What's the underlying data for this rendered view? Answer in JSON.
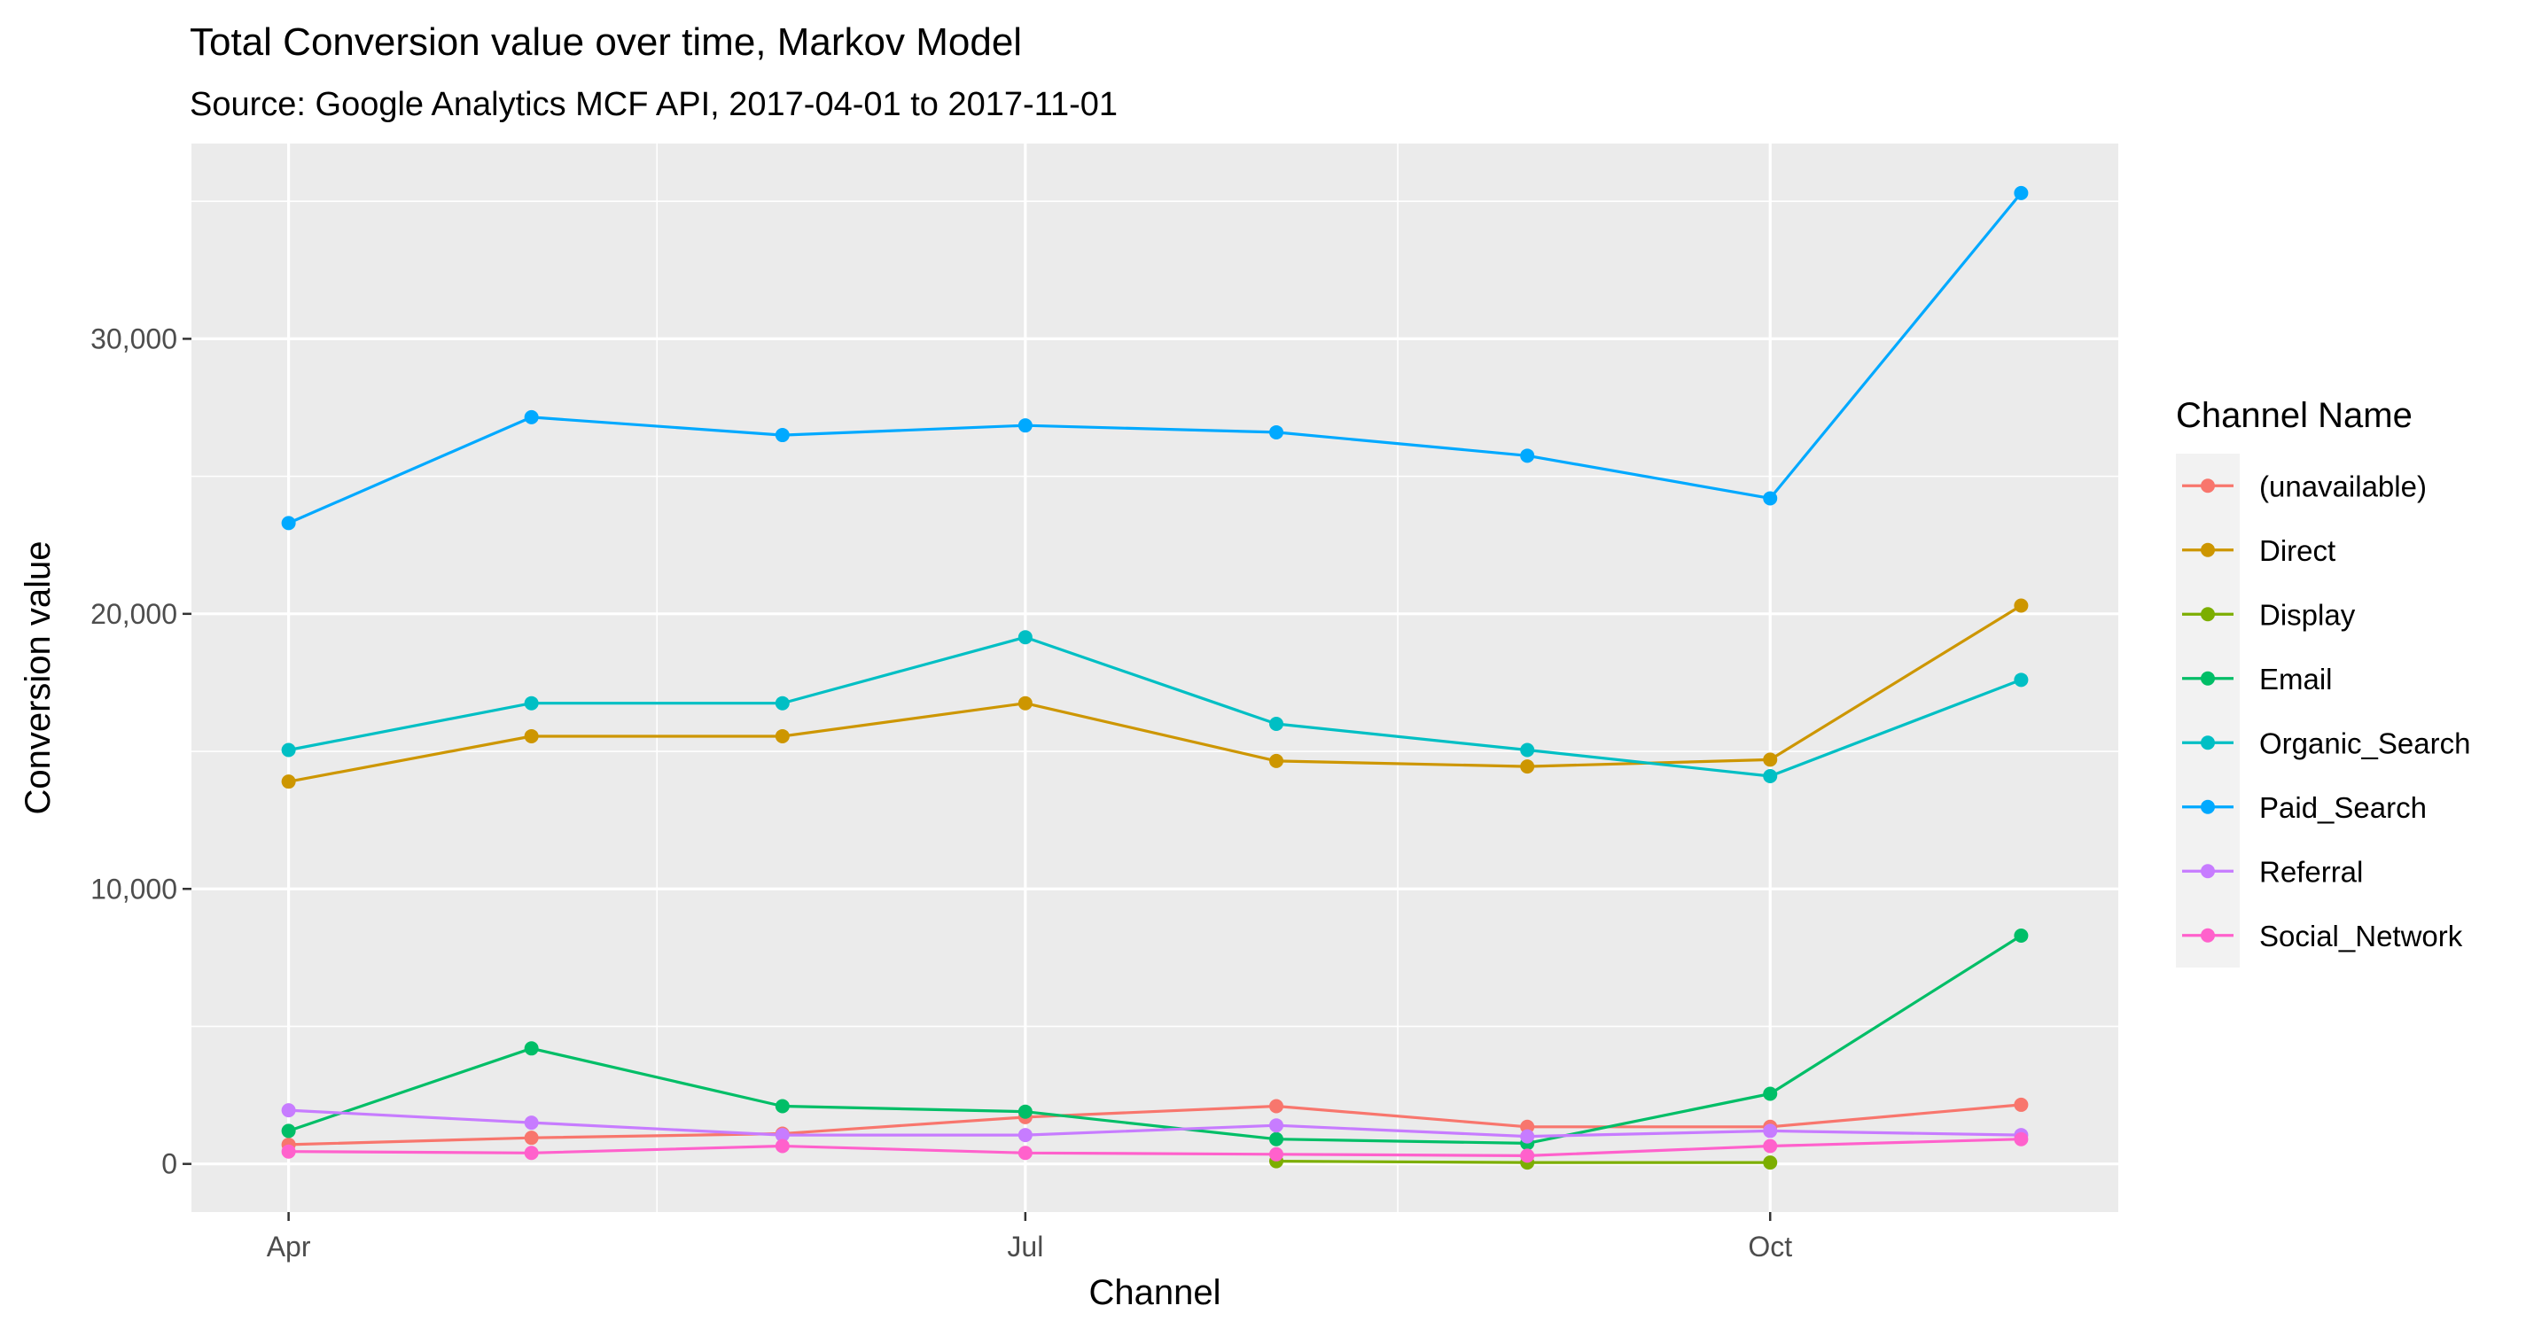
{
  "chart_data": {
    "type": "line",
    "title": "Total Conversion value over time, Markov Model",
    "subtitle": "Source: Google Analytics MCF API, 2017-04-01 to 2017-11-01",
    "xlabel": "Channel",
    "ylabel": "Conversion value",
    "x": [
      "2017-04-01",
      "2017-05-01",
      "2017-06-01",
      "2017-07-01",
      "2017-08-01",
      "2017-09-01",
      "2017-10-01",
      "2017-11-01"
    ],
    "x_ticks": [
      {
        "date": "2017-04-01",
        "label": "Apr"
      },
      {
        "date": "2017-07-01",
        "label": "Jul"
      },
      {
        "date": "2017-10-01",
        "label": "Oct"
      }
    ],
    "y_ticks": [
      {
        "value": 0,
        "label": "0"
      },
      {
        "value": 10000,
        "label": "10,000"
      },
      {
        "value": 20000,
        "label": "20,000"
      },
      {
        "value": 30000,
        "label": "30,000"
      }
    ],
    "xlim": [
      "2017-03-20",
      "2017-11-13"
    ],
    "ylim": [
      -1750,
      37100
    ],
    "grid": true,
    "legend": {
      "title": "Channel Name",
      "position": "right"
    },
    "series": [
      {
        "name": "(unavailable)",
        "color": "#F8766D",
        "values": [
          700,
          950,
          1100,
          1700,
          2100,
          1350,
          1350,
          2150
        ]
      },
      {
        "name": "Direct",
        "color": "#CD9600",
        "values": [
          13900,
          15550,
          15550,
          16750,
          14650,
          14450,
          14700,
          20300
        ]
      },
      {
        "name": "Display",
        "color": "#7CAE00",
        "values": [
          null,
          null,
          null,
          null,
          100,
          50,
          50,
          null
        ]
      },
      {
        "name": "Email",
        "color": "#00BE67",
        "values": [
          1200,
          4200,
          2100,
          1900,
          900,
          750,
          2550,
          8300
        ]
      },
      {
        "name": "Organic_Search",
        "color": "#00BFC4",
        "values": [
          15050,
          16750,
          16750,
          19150,
          16000,
          15050,
          14100,
          17600
        ]
      },
      {
        "name": "Paid_Search",
        "color": "#00A9FF",
        "values": [
          23300,
          27150,
          26500,
          26850,
          26600,
          25750,
          24200,
          35300
        ]
      },
      {
        "name": "Referral",
        "color": "#C77CFF",
        "values": [
          1950,
          1500,
          1050,
          1050,
          1400,
          1000,
          1200,
          1050
        ]
      },
      {
        "name": "Social_Network",
        "color": "#FF61CC",
        "values": [
          450,
          400,
          650,
          400,
          350,
          300,
          650,
          900
        ]
      }
    ]
  }
}
